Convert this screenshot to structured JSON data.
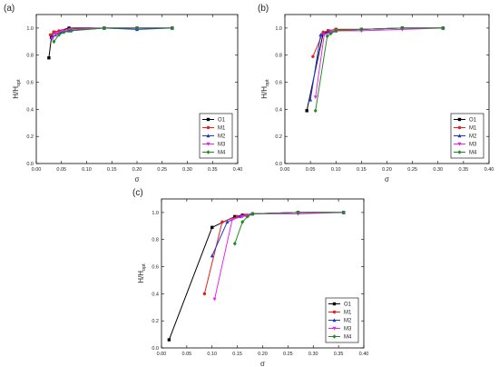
{
  "chart_data": [
    {
      "type": "line",
      "panel_label": "(a)",
      "xlabel": "σ",
      "ylabel": "H/H",
      "ylabel_sub": "opt",
      "xlim": [
        0.0,
        0.4
      ],
      "ylim": [
        0.0,
        1.1
      ],
      "xticks": [
        "0.00",
        "0.05",
        "0.10",
        "0.15",
        "0.20",
        "0.25",
        "0.30",
        "0.35",
        "0.40"
      ],
      "yticks": [
        "0.0",
        "0.2",
        "0.4",
        "0.6",
        "0.8",
        "1.0"
      ],
      "legend_position": "bottom-right",
      "series": [
        {
          "name": "O1",
          "color": "#000000",
          "marker": "square",
          "x": [
            0.025,
            0.03,
            0.035,
            0.065,
            0.135,
            0.2,
            0.27
          ],
          "y": [
            0.78,
            0.93,
            0.97,
            1.0,
            1.0,
            1.0,
            1.0
          ]
        },
        {
          "name": "M1",
          "color": "#e8201c",
          "marker": "circle",
          "x": [
            0.028,
            0.035,
            0.045,
            0.065,
            0.135,
            0.2,
            0.27
          ],
          "y": [
            0.95,
            0.97,
            0.98,
            0.99,
            1.0,
            1.0,
            1.0
          ]
        },
        {
          "name": "M2",
          "color": "#1f36d8",
          "marker": "triangle-up",
          "x": [
            0.03,
            0.038,
            0.05,
            0.065,
            0.135,
            0.2,
            0.27
          ],
          "y": [
            0.93,
            0.95,
            0.97,
            0.98,
            1.0,
            0.99,
            1.0
          ]
        },
        {
          "name": "M3",
          "color": "#ee22ee",
          "marker": "triangle-down",
          "x": [
            0.032,
            0.04,
            0.052,
            0.068,
            0.135,
            0.2,
            0.27
          ],
          "y": [
            0.92,
            0.96,
            0.98,
            0.99,
            1.0,
            1.0,
            1.0
          ]
        },
        {
          "name": "M4",
          "color": "#1f8a22",
          "marker": "diamond",
          "x": [
            0.035,
            0.045,
            0.055,
            0.07,
            0.135,
            0.2,
            0.27
          ],
          "y": [
            0.9,
            0.95,
            0.97,
            0.98,
            1.0,
            1.0,
            1.0
          ]
        }
      ]
    },
    {
      "type": "line",
      "panel_label": "(b)",
      "xlabel": "σ",
      "ylabel": "H/H",
      "ylabel_sub": "opt",
      "xlim": [
        0.0,
        0.4
      ],
      "ylim": [
        0.0,
        1.1
      ],
      "xticks": [
        "0.00",
        "0.05",
        "0.10",
        "0.15",
        "0.20",
        "0.25",
        "0.30",
        "0.35",
        "0.40"
      ],
      "yticks": [
        "0.0",
        "0.2",
        "0.4",
        "0.6",
        "0.8",
        "1.0"
      ],
      "legend_position": "bottom-right",
      "series": [
        {
          "name": "O1",
          "color": "#000000",
          "marker": "square",
          "x": [
            0.043,
            0.075,
            0.085,
            0.1,
            0.15,
            0.23,
            0.31
          ],
          "y": [
            0.39,
            0.96,
            0.98,
            0.99,
            0.99,
            1.0,
            1.0
          ]
        },
        {
          "name": "M1",
          "color": "#e8201c",
          "marker": "circle",
          "x": [
            0.055,
            0.075,
            0.085,
            0.1,
            0.15,
            0.23,
            0.31
          ],
          "y": [
            0.79,
            0.97,
            0.98,
            0.99,
            0.99,
            1.0,
            1.0
          ]
        },
        {
          "name": "M2",
          "color": "#1f36d8",
          "marker": "triangle-up",
          "x": [
            0.05,
            0.07,
            0.085,
            0.1,
            0.15,
            0.23,
            0.31
          ],
          "y": [
            0.47,
            0.95,
            0.97,
            0.98,
            0.99,
            1.0,
            1.0
          ]
        },
        {
          "name": "M3",
          "color": "#ee22ee",
          "marker": "triangle-down",
          "x": [
            0.06,
            0.077,
            0.09,
            0.1,
            0.15,
            0.23,
            0.31
          ],
          "y": [
            0.49,
            0.95,
            0.97,
            0.98,
            0.98,
            0.99,
            1.0
          ]
        },
        {
          "name": "M4",
          "color": "#1f8a22",
          "marker": "diamond",
          "x": [
            0.06,
            0.083,
            0.09,
            0.1,
            0.15,
            0.23,
            0.31
          ],
          "y": [
            0.39,
            0.94,
            0.96,
            0.98,
            0.99,
            1.0,
            1.0
          ]
        }
      ]
    },
    {
      "type": "line",
      "panel_label": "(c)",
      "xlabel": "σ",
      "ylabel": "H/H",
      "ylabel_sub": "opt",
      "xlim": [
        0.0,
        0.4
      ],
      "ylim": [
        0.0,
        1.1
      ],
      "xticks": [
        "0.00",
        "0.05",
        "0.10",
        "0.15",
        "0.20",
        "0.25",
        "0.30",
        "0.35",
        "0.40"
      ],
      "yticks": [
        "0.0",
        "0.2",
        "0.4",
        "0.6",
        "0.8",
        "1.0"
      ],
      "legend_position": "bottom-right",
      "series": [
        {
          "name": "O1",
          "color": "#000000",
          "marker": "square",
          "x": [
            0.015,
            0.1,
            0.145,
            0.16,
            0.18,
            0.27,
            0.36
          ],
          "y": [
            0.06,
            0.89,
            0.97,
            0.98,
            0.99,
            1.0,
            1.0
          ]
        },
        {
          "name": "M1",
          "color": "#e8201c",
          "marker": "circle",
          "x": [
            0.085,
            0.12,
            0.15,
            0.165,
            0.18,
            0.27,
            0.36
          ],
          "y": [
            0.4,
            0.93,
            0.97,
            0.98,
            0.99,
            1.0,
            1.0
          ]
        },
        {
          "name": "M2",
          "color": "#1f36d8",
          "marker": "triangle-up",
          "x": [
            0.1,
            0.13,
            0.155,
            0.17,
            0.18,
            0.27,
            0.36
          ],
          "y": [
            0.68,
            0.93,
            0.97,
            0.98,
            0.99,
            1.0,
            1.0
          ]
        },
        {
          "name": "M3",
          "color": "#ee22ee",
          "marker": "triangle-down",
          "x": [
            0.105,
            0.14,
            0.16,
            0.17,
            0.18,
            0.27,
            0.36
          ],
          "y": [
            0.36,
            0.95,
            0.97,
            0.98,
            0.99,
            0.99,
            1.0
          ]
        },
        {
          "name": "M4",
          "color": "#1f8a22",
          "marker": "diamond",
          "x": [
            0.145,
            0.16,
            0.17,
            0.18,
            0.27,
            0.36
          ],
          "y": [
            0.77,
            0.93,
            0.97,
            0.99,
            1.0,
            1.0
          ]
        }
      ]
    }
  ]
}
